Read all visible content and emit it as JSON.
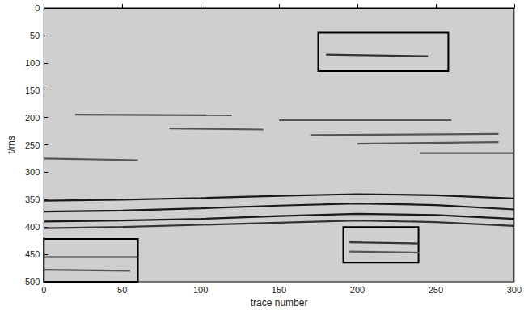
{
  "chart_data": {
    "type": "line",
    "xlabel": "trace number",
    "ylabel": "t/ms",
    "xlim": [
      0,
      300
    ],
    "ylim": [
      0,
      500
    ],
    "xticks": [
      0,
      50,
      100,
      150,
      200,
      250,
      300
    ],
    "yticks": [
      0,
      50,
      100,
      150,
      200,
      250,
      300,
      350,
      400,
      450,
      500
    ],
    "series": [
      {
        "color": "#1a1a1a",
        "x": [
          0,
          50,
          100,
          150,
          200,
          250,
          300
        ],
        "values": [
          352,
          350,
          347,
          343,
          340,
          342,
          348
        ]
      },
      {
        "color": "#1a1a1a",
        "x": [
          0,
          50,
          100,
          150,
          200,
          250,
          300
        ],
        "values": [
          372,
          370,
          366,
          361,
          357,
          360,
          368
        ]
      },
      {
        "color": "#1a1a1a",
        "x": [
          0,
          50,
          100,
          150,
          200,
          250,
          300
        ],
        "values": [
          390,
          388,
          385,
          380,
          376,
          378,
          385
        ]
      },
      {
        "color": "#333333",
        "x": [
          0,
          50,
          100,
          150,
          200,
          250,
          300
        ],
        "values": [
          402,
          400,
          396,
          392,
          388,
          391,
          398
        ]
      },
      {
        "color": "#555555",
        "x": [
          20,
          120
        ],
        "values": [
          195,
          196
        ]
      },
      {
        "color": "#555555",
        "x": [
          150,
          260
        ],
        "values": [
          205,
          205
        ]
      },
      {
        "color": "#555555",
        "x": [
          80,
          140
        ],
        "values": [
          220,
          222
        ]
      },
      {
        "color": "#555555",
        "x": [
          170,
          290
        ],
        "values": [
          232,
          230
        ]
      },
      {
        "color": "#555555",
        "x": [
          200,
          290
        ],
        "values": [
          248,
          245
        ]
      },
      {
        "color": "#555555",
        "x": [
          240,
          300
        ],
        "values": [
          265,
          265
        ]
      },
      {
        "color": "#555555",
        "x": [
          0,
          60
        ],
        "values": [
          275,
          278
        ]
      },
      {
        "color": "#333333",
        "x": [
          180,
          245
        ],
        "values": [
          85,
          88
        ]
      },
      {
        "color": "#333333",
        "x": [
          0,
          60
        ],
        "values": [
          455,
          455
        ]
      },
      {
        "color": "#555555",
        "x": [
          0,
          55
        ],
        "values": [
          478,
          480
        ]
      },
      {
        "color": "#333333",
        "x": [
          195,
          240
        ],
        "values": [
          428,
          430
        ]
      },
      {
        "color": "#555555",
        "x": [
          195,
          240
        ],
        "values": [
          445,
          447
        ]
      }
    ],
    "boxes": [
      {
        "x": [
          175,
          258
        ],
        "y": [
          45,
          115
        ]
      },
      {
        "x": [
          0,
          60
        ],
        "y": [
          422,
          500
        ]
      },
      {
        "x": [
          191,
          239
        ],
        "y": [
          400,
          465
        ]
      }
    ]
  }
}
